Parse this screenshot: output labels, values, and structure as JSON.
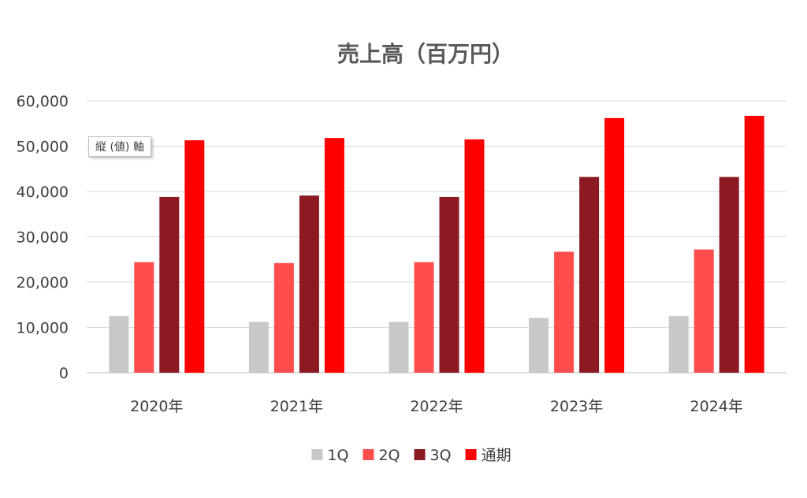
{
  "chart_data": {
    "type": "bar",
    "title": "売上高（百万円）",
    "categories": [
      "2020年",
      "2021年",
      "2022年",
      "2023年",
      "2024年"
    ],
    "series": [
      {
        "name": "1Q",
        "color": "#c8c8c8",
        "values": [
          12500,
          11200,
          11200,
          12100,
          12500
        ]
      },
      {
        "name": "2Q",
        "color": "#ff4d4d",
        "values": [
          24400,
          24200,
          24400,
          26700,
          27200
        ]
      },
      {
        "name": "3Q",
        "color": "#8b1a22",
        "values": [
          38800,
          39100,
          38800,
          43200,
          43200
        ]
      },
      {
        "name": "通期",
        "color": "#ff0000",
        "values": [
          51300,
          51800,
          51500,
          56200,
          56700
        ]
      }
    ],
    "ylim": [
      0,
      60000
    ],
    "yticks": [
      0,
      10000,
      20000,
      30000,
      40000,
      50000,
      60000
    ],
    "ytick_labels": [
      "0",
      "10,000",
      "20,000",
      "30,000",
      "40,000",
      "50,000",
      "60,000"
    ],
    "grid": true,
    "legend_position": "bottom"
  },
  "overlay": {
    "axis_tooltip": "縦 (値) 軸"
  }
}
